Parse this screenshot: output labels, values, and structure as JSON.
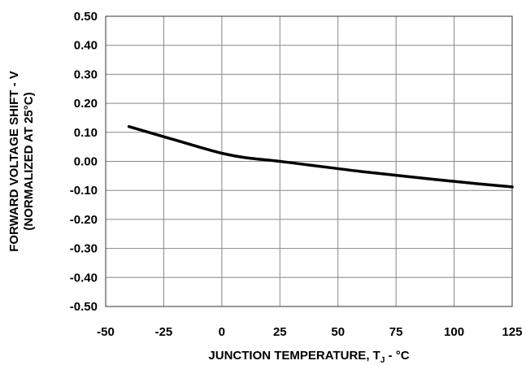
{
  "chart_data": {
    "type": "line",
    "title": "",
    "xlabel_main": "JUNCTION TEMPERATURE, T",
    "xlabel_sub": "J",
    "xlabel_tail": " - °C",
    "ylabel_line1": "FORWARD VOLTAGE SHIFT - V",
    "ylabel_line2": "(NORMALIZED AT 25°C)",
    "xlim": [
      -50,
      125
    ],
    "ylim": [
      -0.5,
      0.5
    ],
    "x_ticks": [
      -50,
      -25,
      0,
      25,
      50,
      75,
      100,
      125
    ],
    "x_tick_labels": [
      "-50",
      "-25",
      "0",
      "25",
      "50",
      "75",
      "100",
      "125"
    ],
    "y_ticks": [
      0.5,
      0.4,
      0.3,
      0.2,
      0.1,
      0.0,
      -0.1,
      -0.2,
      -0.3,
      -0.4,
      -0.5
    ],
    "y_tick_labels": [
      "0.50",
      "0.40",
      "0.30",
      "0.20",
      "0.10",
      "0.00",
      "-0.10",
      "-0.20",
      "-0.30",
      "-0.40",
      "-0.50"
    ],
    "grid": true,
    "series": [
      {
        "color": "#000000",
        "x": [
          -40,
          -25,
          -10,
          0,
          10,
          25,
          40,
          50,
          60,
          75,
          90,
          100,
          110,
          125
        ],
        "y": [
          0.12,
          0.085,
          0.05,
          0.028,
          0.013,
          0.0,
          -0.015,
          -0.025,
          -0.035,
          -0.048,
          -0.061,
          -0.069,
          -0.077,
          -0.088
        ]
      }
    ]
  }
}
